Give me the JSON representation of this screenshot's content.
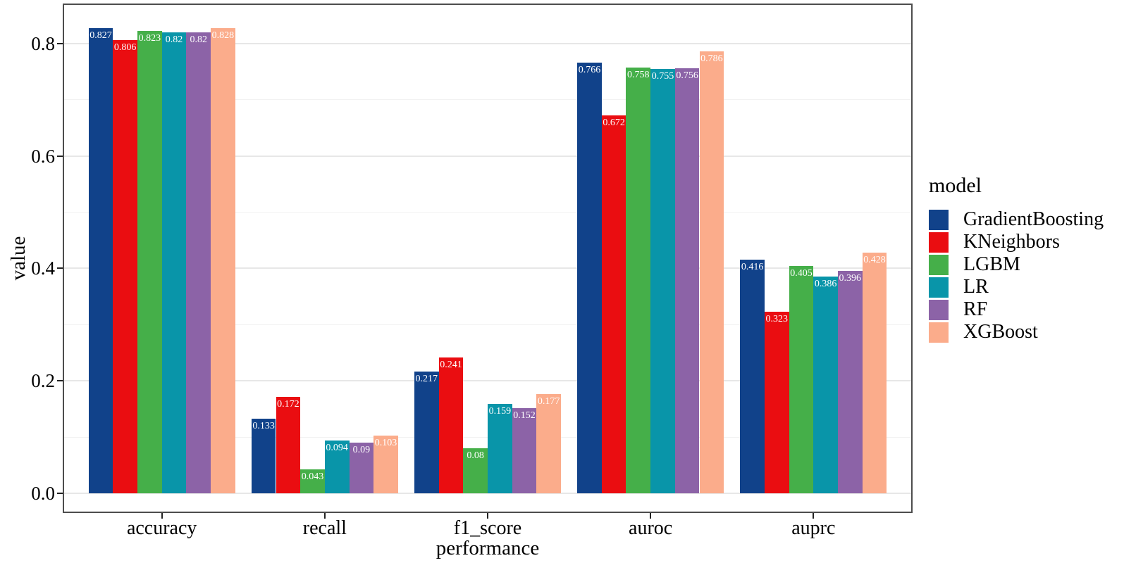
{
  "chart_data": {
    "type": "bar",
    "title": "",
    "xlabel": "performance",
    "ylabel": "value",
    "legend_title": "model",
    "legend_position": "right",
    "grid": "on",
    "background": "#ffffff",
    "bar_label_color": "#ffffff",
    "categories": [
      "accuracy",
      "recall",
      "f1_score",
      "auroc",
      "auprc"
    ],
    "series": [
      {
        "name": "GradientBoosting",
        "color": "#11428a",
        "values": [
          0.827,
          0.133,
          0.217,
          0.766,
          0.416
        ]
      },
      {
        "name": "KNeighbors",
        "color": "#ea0d11",
        "values": [
          0.806,
          0.172,
          0.241,
          0.672,
          0.323
        ]
      },
      {
        "name": "LGBM",
        "color": "#45af49",
        "values": [
          0.823,
          0.043,
          0.08,
          0.758,
          0.405
        ]
      },
      {
        "name": "LR",
        "color": "#0995a9",
        "values": [
          0.82,
          0.094,
          0.159,
          0.755,
          0.386
        ]
      },
      {
        "name": "RF",
        "color": "#8c63a7",
        "values": [
          0.82,
          0.09,
          0.152,
          0.756,
          0.396
        ]
      },
      {
        "name": "XGBoost",
        "color": "#fbac8b",
        "values": [
          0.828,
          0.103,
          0.177,
          0.786,
          0.428
        ]
      }
    ],
    "y_ticks": [
      0.0,
      0.2,
      0.4,
      0.6,
      0.8
    ],
    "y_minor_ticks": [
      0.1,
      0.3,
      0.5,
      0.7
    ],
    "ylim": [
      -0.0326,
      0.8689
    ],
    "grid_major_color": "#e7e7e7",
    "grid_minor_color": "#f2f2f2"
  }
}
